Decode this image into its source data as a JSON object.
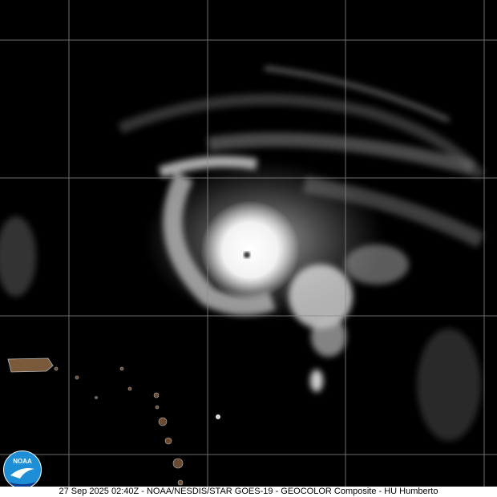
{
  "caption": "27 Sep 2025 02:40Z - NOAA/NESDIS/STAR GOES-19 - GEOCOLOR Composite - HU Humberto",
  "logo": {
    "text": "NOAA",
    "color": "#1e8fd6"
  },
  "colors": {
    "background": "#000000",
    "grid": "#8a8a8a",
    "land": "#7a5a3a"
  }
}
